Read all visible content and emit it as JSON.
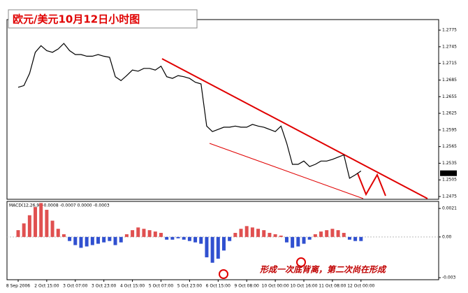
{
  "chart_data": [
    {
      "type": "line",
      "title": "欧元/美元10月12日小时图",
      "color": "#000000",
      "values": [
        1.2672,
        1.2675,
        1.2697,
        1.2735,
        1.2747,
        1.2738,
        1.2735,
        1.2741,
        1.2751,
        1.2738,
        1.2731,
        1.2731,
        1.2728,
        1.2728,
        1.2731,
        1.2728,
        1.2726,
        1.2691,
        1.2684,
        1.2693,
        1.2703,
        1.2701,
        1.2706,
        1.2706,
        1.2703,
        1.271,
        1.2691,
        1.2688,
        1.2693,
        1.2691,
        1.2688,
        1.2681,
        1.2678,
        1.2602,
        1.2592,
        1.2596,
        1.26,
        1.26,
        1.2602,
        1.26,
        1.26,
        1.2605,
        1.2602,
        1.26,
        1.2596,
        1.2592,
        1.2602,
        1.2571,
        1.2533,
        1.2533,
        1.2539,
        1.2529,
        1.2533,
        1.2539,
        1.2539,
        1.2542,
        1.2546,
        1.255,
        1.2508,
        1.2514,
        1.2521
      ],
      "current_price": 1.2517,
      "ylim": [
        1.247,
        1.2794
      ],
      "yticks": [
        1.2775,
        1.2745,
        1.2715,
        1.2685,
        1.2655,
        1.2625,
        1.2595,
        1.2565,
        1.2535,
        1.2505,
        1.2475
      ]
    },
    {
      "type": "bar",
      "title": "MACD(12,26,9) -0.0008 -0.0007 0.0000 -0.0003",
      "annotation": "形成一次底背离，第二次尚在形成",
      "positive_color": "#e05050",
      "negative_color": "#3050d0",
      "categories": [
        "8 Sep 2006",
        null,
        null,
        null,
        null,
        "2 Oct 15:00",
        null,
        null,
        null,
        null,
        "3 Oct 07:00",
        null,
        null,
        null,
        null,
        "3 Oct 23:00",
        null,
        null,
        null,
        null,
        "4 Oct 15:00",
        null,
        null,
        null,
        null,
        "5 Oct 07:00",
        null,
        null,
        null,
        null,
        "5 Oct 23:00",
        null,
        null,
        null,
        null,
        "6 Oct 15:00",
        null,
        null,
        null,
        null,
        "9 Oct 08:00",
        null,
        null,
        null,
        null,
        "10 Oct 00:00",
        null,
        null,
        null,
        null,
        "10 Oct 16:00",
        null,
        null,
        null,
        null,
        "11 Oct 08:00",
        null,
        null,
        null,
        null,
        "12 Oct 00:00"
      ],
      "values": [
        0.0005,
        0.001,
        0.0016,
        0.0022,
        0.0025,
        0.002,
        0.0012,
        0.0006,
        0.0002,
        -0.0003,
        -0.0006,
        -0.0008,
        -0.0007,
        -0.0006,
        -0.0005,
        -0.0004,
        -0.0003,
        -0.0006,
        -0.0004,
        0.0002,
        0.0005,
        0.0007,
        0.0006,
        0.0005,
        0.0004,
        0.0003,
        -0.0002,
        -0.0002,
        -0.0001,
        -0.0002,
        -0.0003,
        -0.0004,
        -0.0005,
        -0.0015,
        -0.0019,
        -0.0016,
        -0.001,
        -0.0003,
        0.0003,
        0.0006,
        0.0008,
        0.0007,
        0.0006,
        0.0005,
        0.0003,
        0.0002,
        0.0001,
        -0.0004,
        -0.0008,
        -0.0007,
        -0.0005,
        -0.0002,
        0.0002,
        0.0004,
        0.0005,
        0.0006,
        0.0005,
        0.0003,
        -0.0002,
        -0.0003,
        -0.0003
      ],
      "ylim": [
        -0.00315,
        0.00262
      ],
      "yticks": [
        0.0021,
        {
          "value": 0,
          "label": "0.00"
        },
        -0.003
      ]
    }
  ]
}
